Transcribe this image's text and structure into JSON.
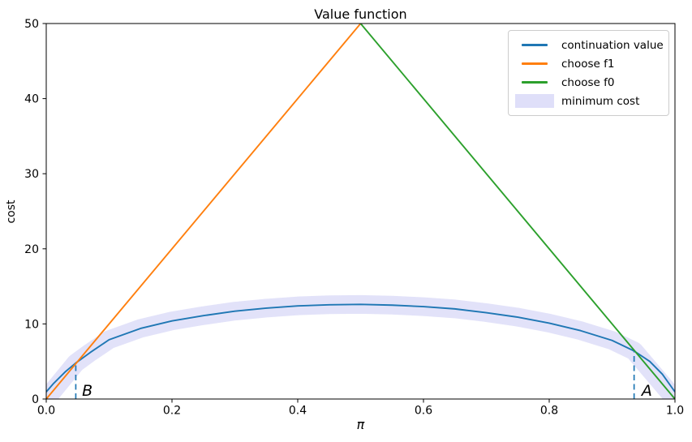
{
  "figure": {
    "title": "Value function",
    "xlabel": "π",
    "ylabel": "cost"
  },
  "legend": {
    "position": "upper right",
    "entries": [
      {
        "label": "continuation value",
        "color": "#1f77b4",
        "kind": "line"
      },
      {
        "label": "choose f1",
        "color": "#ff7f0e",
        "kind": "line"
      },
      {
        "label": "choose f0",
        "color": "#2ca02c",
        "kind": "line"
      },
      {
        "label": "minimum cost",
        "color": "#dfdff9",
        "kind": "patch"
      }
    ]
  },
  "chart_data": {
    "type": "line",
    "title": "Value function",
    "xlabel": "π",
    "ylabel": "cost",
    "xlim": [
      0.0,
      1.0
    ],
    "ylim": [
      0,
      50
    ],
    "grid": false,
    "legend_position": "upper right",
    "x_tick_values": [
      0.0,
      0.2,
      0.4,
      0.6,
      0.8,
      1.0
    ],
    "x_tick_labels": [
      "0.0",
      "0.2",
      "0.4",
      "0.6",
      "0.8",
      "1.0"
    ],
    "y_tick_values": [
      0,
      10,
      20,
      30,
      40,
      50
    ],
    "y_tick_labels": [
      "0",
      "10",
      "20",
      "30",
      "40",
      "50"
    ],
    "series": [
      {
        "name": "minimum cost",
        "style": "band",
        "color": "rgba(92,92,224,0.18)",
        "width": 23,
        "points": [
          [
            0.0,
            0.0
          ],
          [
            0.047,
            4.8
          ],
          [
            0.07,
            6.2
          ],
          [
            0.1,
            7.9
          ],
          [
            0.15,
            9.4
          ],
          [
            0.2,
            10.4
          ],
          [
            0.25,
            11.1
          ],
          [
            0.3,
            11.7
          ],
          [
            0.35,
            12.1
          ],
          [
            0.4,
            12.4
          ],
          [
            0.45,
            12.55
          ],
          [
            0.5,
            12.6
          ],
          [
            0.55,
            12.5
          ],
          [
            0.6,
            12.3
          ],
          [
            0.65,
            12.0
          ],
          [
            0.7,
            11.5
          ],
          [
            0.75,
            10.9
          ],
          [
            0.8,
            10.1
          ],
          [
            0.85,
            9.1
          ],
          [
            0.9,
            7.8
          ],
          [
            0.935,
            6.4
          ],
          [
            1.0,
            0.0
          ]
        ]
      },
      {
        "name": "continuation value",
        "style": "solid",
        "color": "#1f77b4",
        "width": 1.9,
        "points": [
          [
            0.0,
            0.95
          ],
          [
            0.012,
            2.1
          ],
          [
            0.03,
            3.6
          ],
          [
            0.047,
            4.8
          ],
          [
            0.07,
            6.2
          ],
          [
            0.1,
            7.9
          ],
          [
            0.15,
            9.4
          ],
          [
            0.2,
            10.4
          ],
          [
            0.25,
            11.1
          ],
          [
            0.3,
            11.7
          ],
          [
            0.35,
            12.1
          ],
          [
            0.4,
            12.4
          ],
          [
            0.45,
            12.55
          ],
          [
            0.5,
            12.6
          ],
          [
            0.55,
            12.5
          ],
          [
            0.6,
            12.3
          ],
          [
            0.65,
            12.0
          ],
          [
            0.7,
            11.5
          ],
          [
            0.75,
            10.9
          ],
          [
            0.8,
            10.1
          ],
          [
            0.85,
            9.1
          ],
          [
            0.9,
            7.8
          ],
          [
            0.935,
            6.4
          ],
          [
            0.96,
            5.0
          ],
          [
            0.98,
            3.3
          ],
          [
            1.0,
            0.95
          ]
        ]
      },
      {
        "name": "choose f1",
        "style": "solid",
        "color": "#ff7f0e",
        "width": 1.9,
        "points": [
          [
            0.0,
            0.0
          ],
          [
            0.5,
            50.0
          ]
        ]
      },
      {
        "name": "choose f0",
        "style": "solid",
        "color": "#2ca02c",
        "width": 1.9,
        "points": [
          [
            0.5,
            50.0
          ],
          [
            1.0,
            0.0
          ]
        ]
      }
    ],
    "annotations": [
      {
        "label": "B",
        "line_x": 0.047,
        "line_y0": 0,
        "line_y1": 4.8,
        "label_x": 0.057,
        "label_y": 0.45
      },
      {
        "label": "A",
        "line_x": 0.935,
        "line_y0": 0,
        "line_y1": 6.4,
        "label_x": 0.947,
        "label_y": 0.45
      }
    ],
    "annotation_line_color": "#1f77b4"
  }
}
